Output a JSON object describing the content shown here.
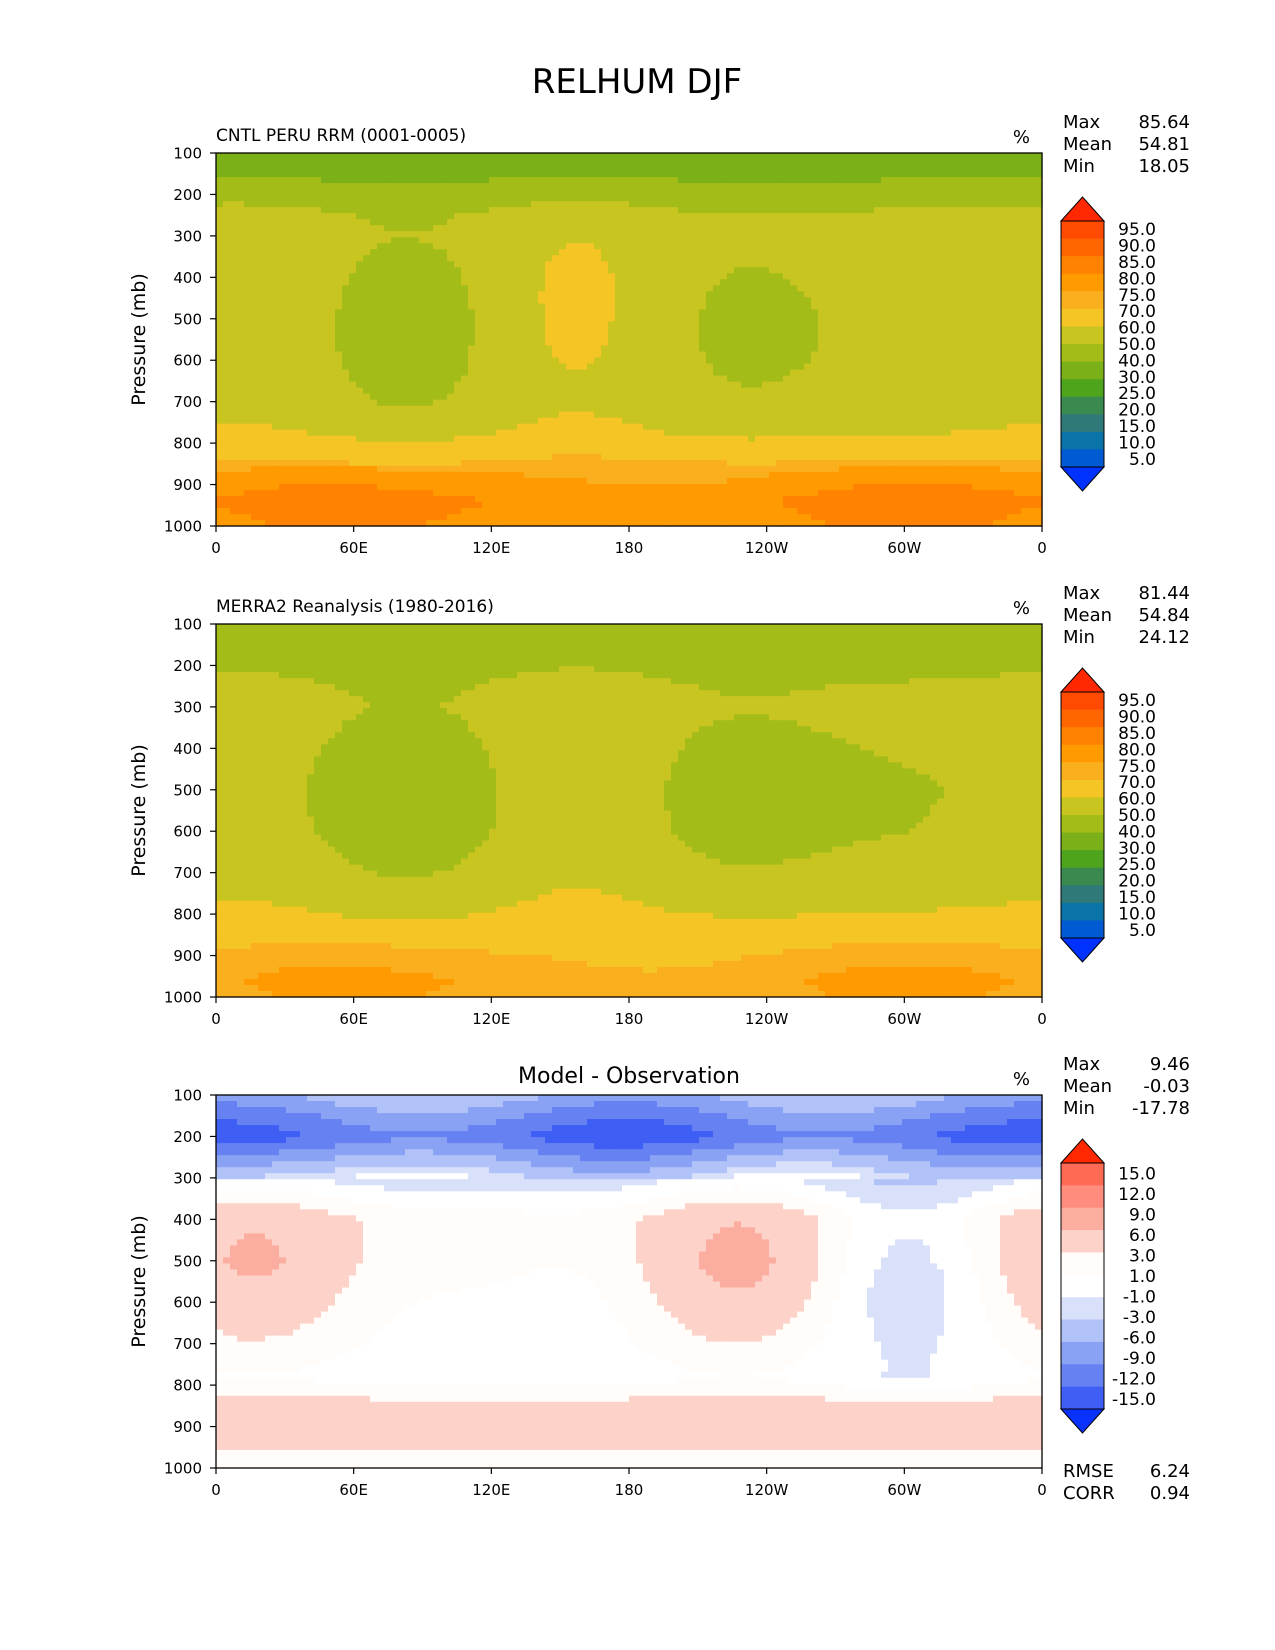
{
  "figure": {
    "title": "RELHUM DJF"
  },
  "chart_data": [
    {
      "type": "heatmap",
      "title": "CNTL PERU RRM (0001-0005)",
      "units": "%",
      "stats": [
        {
          "label": "Max",
          "value": "85.64"
        },
        {
          "label": "Mean",
          "value": "54.81"
        },
        {
          "label": "Min",
          "value": "18.05"
        }
      ],
      "xlabel": "",
      "ylabel": "Pressure (mb)",
      "x_ticks": [
        "0",
        "60E",
        "120E",
        "180",
        "120W",
        "60W",
        "0"
      ],
      "y_ticks": [
        "100",
        "200",
        "300",
        "400",
        "500",
        "600",
        "700",
        "800",
        "900",
        "1000"
      ],
      "ylim": [
        100,
        1000
      ],
      "colorbar": {
        "labels": [
          "95.0",
          "90.0",
          "85.0",
          "80.0",
          "75.0",
          "70.0",
          "60.0",
          "50.0",
          "40.0",
          "30.0",
          "25.0",
          "20.0",
          "15.0",
          "10.0",
          "5.0"
        ],
        "colors": [
          "#ff2800",
          "#ff4a00",
          "#ff6600",
          "#ff8200",
          "#ff9a00",
          "#fab01e",
          "#f5c525",
          "#c9c520",
          "#a3bc18",
          "#7cb018",
          "#4ea41c",
          "#3a8a50",
          "#2f7a78",
          "#0a73a8",
          "#005ad2",
          "#0032ff"
        ]
      },
      "profile": [
        {
          "p": 100,
          "v": 31
        },
        {
          "p": 150,
          "v": 38
        },
        {
          "p": 200,
          "v": 45
        },
        {
          "p": 250,
          "v": 52
        },
        {
          "p": 300,
          "v": 55
        },
        {
          "p": 400,
          "v": 54
        },
        {
          "p": 500,
          "v": 53
        },
        {
          "p": 600,
          "v": 53
        },
        {
          "p": 700,
          "v": 54
        },
        {
          "p": 780,
          "v": 60
        },
        {
          "p": 830,
          "v": 68
        },
        {
          "p": 880,
          "v": 76
        },
        {
          "p": 940,
          "v": 80
        },
        {
          "p": 1000,
          "v": 78
        }
      ]
    },
    {
      "type": "heatmap",
      "title": "MERRA2 Reanalysis (1980-2016)",
      "units": "%",
      "stats": [
        {
          "label": "Max",
          "value": "81.44"
        },
        {
          "label": "Mean",
          "value": "54.84"
        },
        {
          "label": "Min",
          "value": "24.12"
        }
      ],
      "xlabel": "",
      "ylabel": "Pressure (mb)",
      "x_ticks": [
        "0",
        "60E",
        "120E",
        "180",
        "120W",
        "60W",
        "0"
      ],
      "y_ticks": [
        "100",
        "200",
        "300",
        "400",
        "500",
        "600",
        "700",
        "800",
        "900",
        "1000"
      ],
      "ylim": [
        100,
        1000
      ],
      "colorbar": {
        "labels": [
          "95.0",
          "90.0",
          "85.0",
          "80.0",
          "75.0",
          "70.0",
          "60.0",
          "50.0",
          "40.0",
          "30.0",
          "25.0",
          "20.0",
          "15.0",
          "10.0",
          "5.0"
        ],
        "colors": [
          "#ff2800",
          "#ff4a00",
          "#ff6600",
          "#ff8200",
          "#ff9a00",
          "#fab01e",
          "#f5c525",
          "#c9c520",
          "#a3bc18",
          "#7cb018",
          "#4ea41c",
          "#3a8a50",
          "#2f7a78",
          "#0a73a8",
          "#005ad2",
          "#0032ff"
        ]
      },
      "profile": [
        {
          "p": 100,
          "v": 42
        },
        {
          "p": 150,
          "v": 44
        },
        {
          "p": 200,
          "v": 47
        },
        {
          "p": 250,
          "v": 51
        },
        {
          "p": 300,
          "v": 54
        },
        {
          "p": 400,
          "v": 51
        },
        {
          "p": 500,
          "v": 49
        },
        {
          "p": 600,
          "v": 50
        },
        {
          "p": 700,
          "v": 54
        },
        {
          "p": 780,
          "v": 59
        },
        {
          "p": 840,
          "v": 64
        },
        {
          "p": 900,
          "v": 71
        },
        {
          "p": 960,
          "v": 74
        },
        {
          "p": 1000,
          "v": 73
        }
      ]
    },
    {
      "type": "heatmap",
      "title": "Model - Observation",
      "units": "%",
      "stats": [
        {
          "label": "Max",
          "value": "9.46"
        },
        {
          "label": "Mean",
          "value": "-0.03"
        },
        {
          "label": "Min",
          "value": "-17.78"
        }
      ],
      "extra_stats": [
        {
          "label": "RMSE",
          "value": "6.24"
        },
        {
          "label": "CORR",
          "value": "0.94"
        }
      ],
      "xlabel": "",
      "ylabel": "Pressure (mb)",
      "x_ticks": [
        "0",
        "60E",
        "120E",
        "180",
        "120W",
        "60W",
        "0"
      ],
      "y_ticks": [
        "100",
        "200",
        "300",
        "400",
        "500",
        "600",
        "700",
        "800",
        "900",
        "1000"
      ],
      "ylim": [
        100,
        1000
      ],
      "colorbar": {
        "labels": [
          "15.0",
          "12.0",
          "9.0",
          "6.0",
          "3.0",
          "1.0",
          "-1.0",
          "-3.0",
          "-6.0",
          "-9.0",
          "-12.0",
          "-15.0"
        ],
        "colors": [
          "#ff2800",
          "#ff6a55",
          "#ff8c7c",
          "#fbaea0",
          "#fdd2c8",
          "#fffcfa",
          "#ffffff",
          "#d8e0fa",
          "#b0c2f8",
          "#8aa2f4",
          "#6682f2",
          "#3e5ef4",
          "#0a32ff"
        ]
      },
      "profile": [
        {
          "p": 100,
          "v": -5
        },
        {
          "p": 150,
          "v": -9
        },
        {
          "p": 200,
          "v": -12
        },
        {
          "p": 250,
          "v": -7
        },
        {
          "p": 300,
          "v": -2
        },
        {
          "p": 400,
          "v": 3
        },
        {
          "p": 500,
          "v": 3
        },
        {
          "p": 600,
          "v": 2
        },
        {
          "p": 700,
          "v": 1
        },
        {
          "p": 780,
          "v": 0
        },
        {
          "p": 850,
          "v": 4
        },
        {
          "p": 900,
          "v": 6
        },
        {
          "p": 960,
          "v": 3
        },
        {
          "p": 1000,
          "v": 2
        }
      ]
    }
  ]
}
